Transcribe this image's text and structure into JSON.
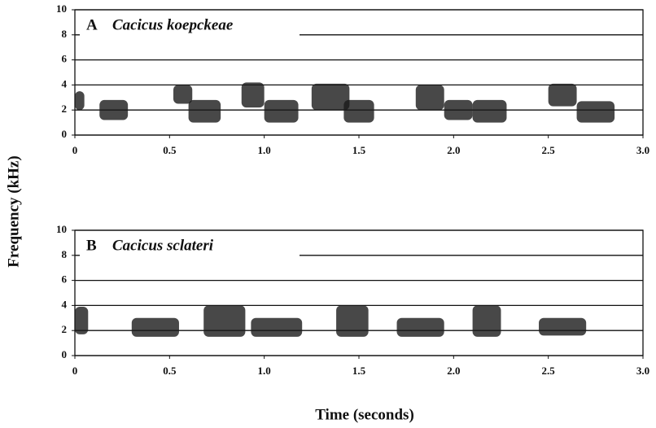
{
  "chart_data": [
    {
      "type": "spectrogram",
      "panel_label": "A",
      "species": "Cacicus koepckeae",
      "xlim": [
        0,
        3
      ],
      "ylim": [
        0,
        10
      ],
      "grid": true,
      "xticks": [
        0,
        0.5,
        {
          "value": 1,
          "label": "1.0"
        },
        1.5,
        {
          "value": 2,
          "label": "2.0"
        },
        2.5,
        {
          "value": 3,
          "label": "3.0"
        }
      ],
      "yticks": [
        0,
        2,
        4,
        6,
        8,
        10
      ],
      "color": "#1a1a1a",
      "notes": [
        {
          "start": 0.0,
          "end": 0.05,
          "low": 2,
          "high": 3.5
        },
        {
          "start": 0.13,
          "end": 0.28,
          "low": 1.2,
          "high": 2.8
        },
        {
          "start": 0.52,
          "end": 0.62,
          "low": 2.5,
          "high": 4
        },
        {
          "start": 0.6,
          "end": 0.77,
          "low": 1,
          "high": 2.8
        },
        {
          "start": 0.88,
          "end": 1.0,
          "low": 2.2,
          "high": 4.2
        },
        {
          "start": 1.0,
          "end": 1.18,
          "low": 1,
          "high": 2.8
        },
        {
          "start": 1.25,
          "end": 1.45,
          "low": 2,
          "high": 4.1
        },
        {
          "start": 1.42,
          "end": 1.58,
          "low": 1,
          "high": 2.8
        },
        {
          "start": 1.8,
          "end": 1.95,
          "low": 2,
          "high": 4
        },
        {
          "start": 1.95,
          "end": 2.1,
          "low": 1.2,
          "high": 2.8
        },
        {
          "start": 2.1,
          "end": 2.28,
          "low": 1,
          "high": 2.8
        },
        {
          "start": 2.5,
          "end": 2.65,
          "low": 2.3,
          "high": 4.1
        },
        {
          "start": 2.65,
          "end": 2.85,
          "low": 1,
          "high": 2.7
        }
      ]
    },
    {
      "type": "spectrogram",
      "panel_label": "B",
      "species": "Cacicus sclateri",
      "xlim": [
        0,
        3
      ],
      "ylim": [
        0,
        10
      ],
      "grid": true,
      "xticks": [
        0,
        0.5,
        {
          "value": 1,
          "label": "1.0"
        },
        1.5,
        {
          "value": 2,
          "label": "2.0"
        },
        2.5,
        {
          "value": 3,
          "label": "3.0"
        }
      ],
      "yticks": [
        0,
        2,
        4,
        6,
        8,
        10
      ],
      "color": "#1a1a1a",
      "notes": [
        {
          "start": 0.0,
          "end": 0.07,
          "low": 1.7,
          "high": 3.9
        },
        {
          "start": 0.3,
          "end": 0.55,
          "low": 1.5,
          "high": 3
        },
        {
          "start": 0.68,
          "end": 0.9,
          "low": 1.5,
          "high": 4
        },
        {
          "start": 0.93,
          "end": 1.2,
          "low": 1.5,
          "high": 3
        },
        {
          "start": 1.38,
          "end": 1.55,
          "low": 1.5,
          "high": 4
        },
        {
          "start": 1.7,
          "end": 1.95,
          "low": 1.5,
          "high": 3
        },
        {
          "start": 2.1,
          "end": 2.25,
          "low": 1.5,
          "high": 4
        },
        {
          "start": 2.45,
          "end": 2.7,
          "low": 1.6,
          "high": 3
        }
      ]
    }
  ],
  "ylabel": "Frequency (kHz)",
  "xlabel": "Time (seconds)"
}
